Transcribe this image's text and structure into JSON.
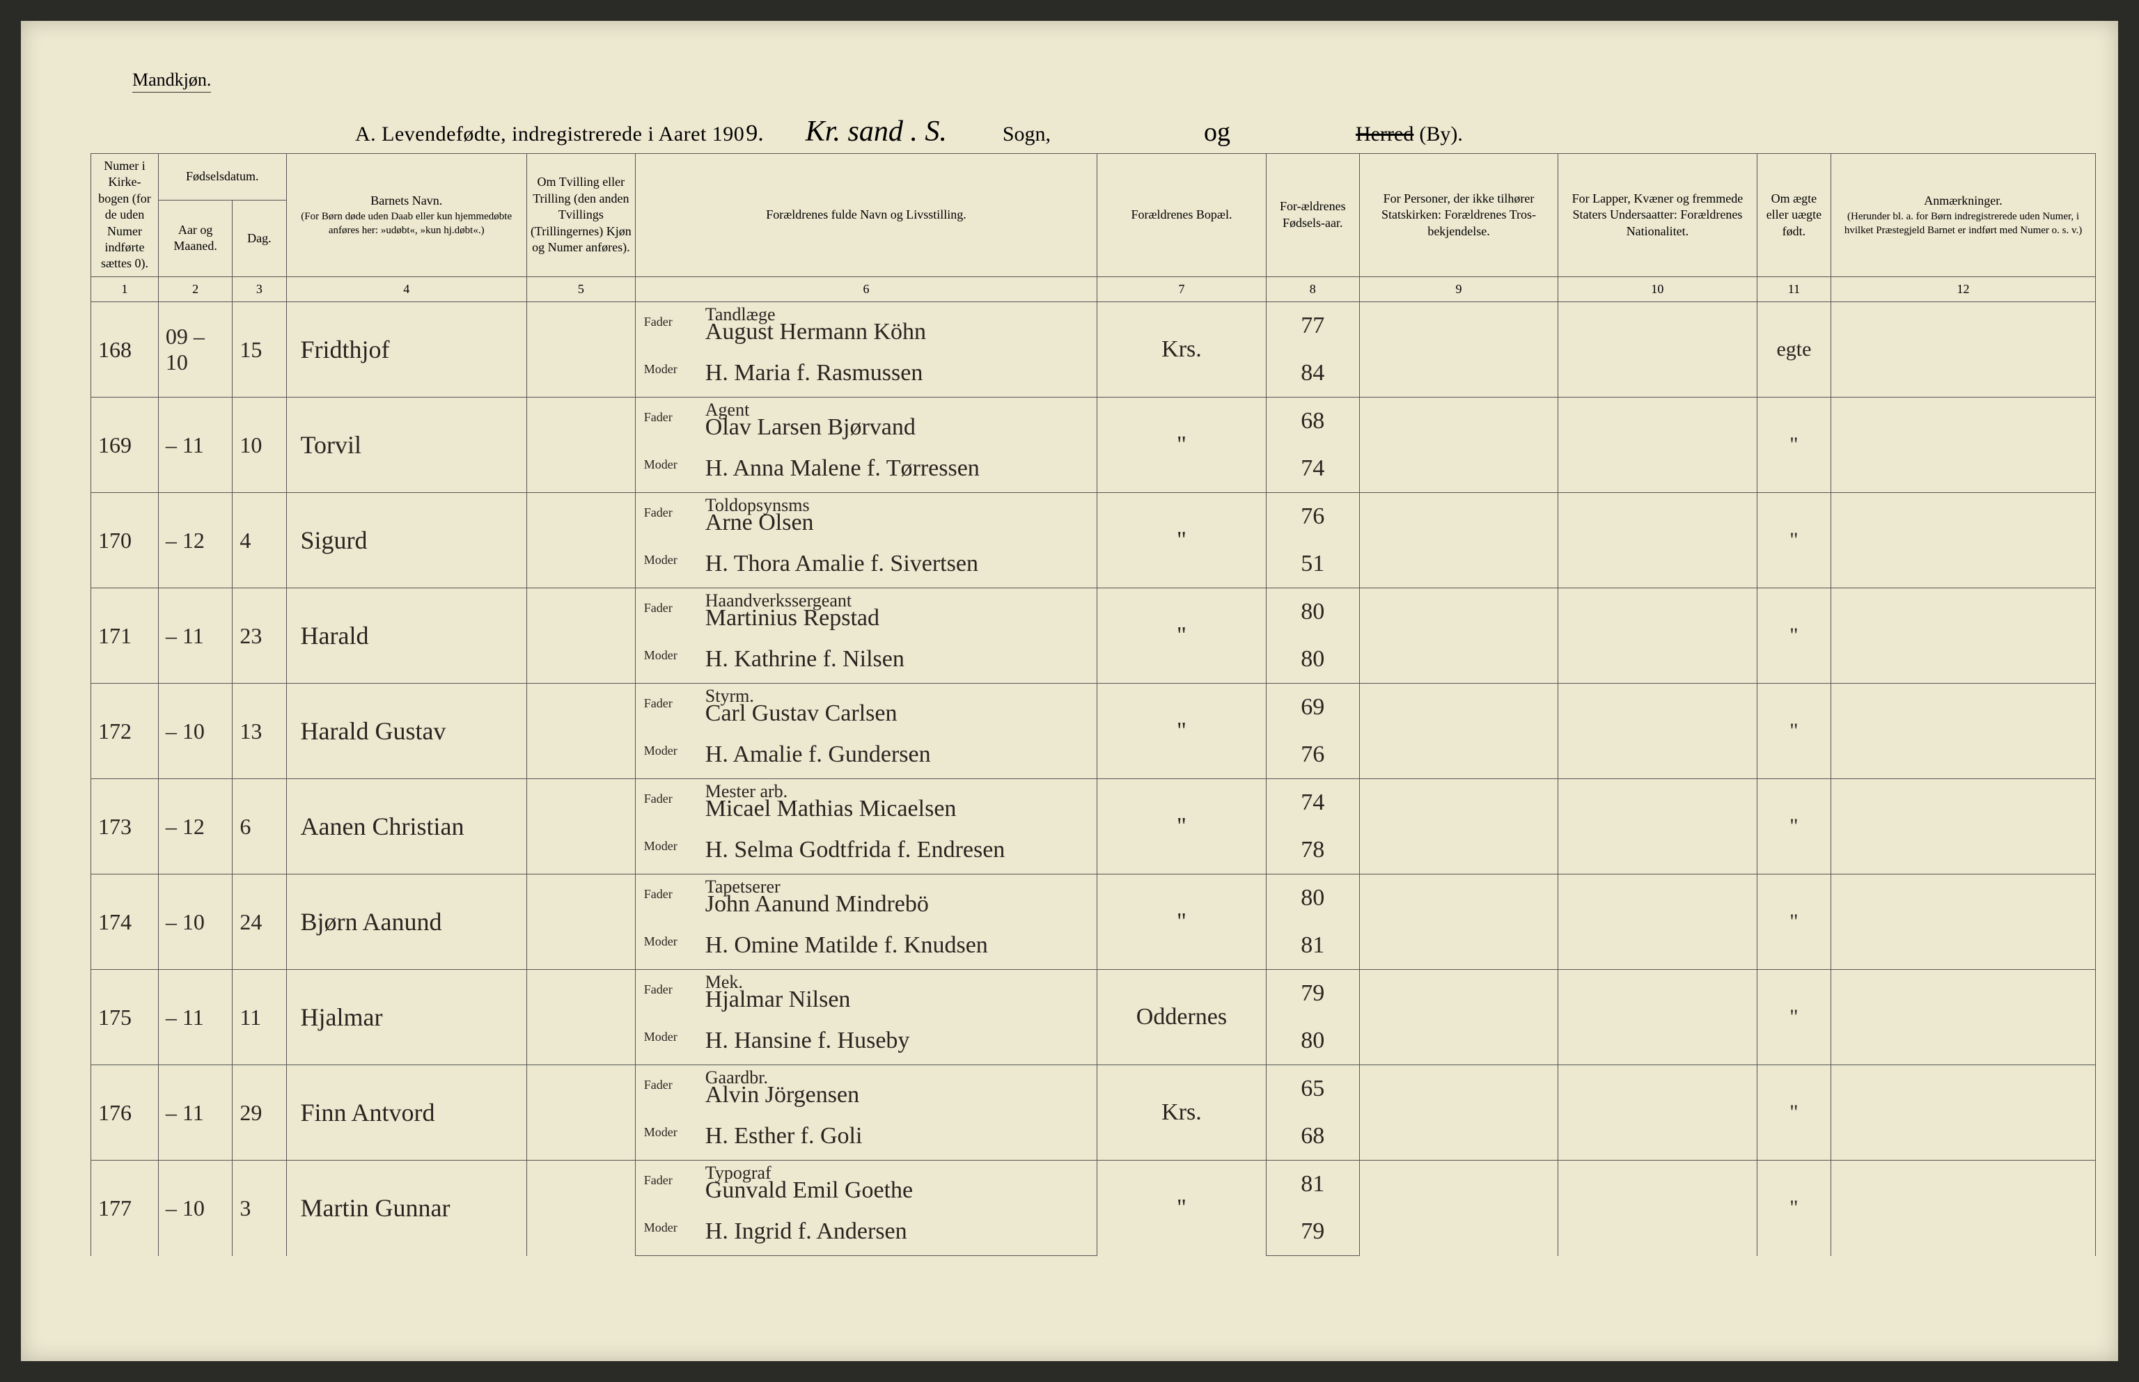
{
  "page": {
    "gender_label": "Mandkjøn.",
    "title_prefix": "A.  Levendefødte, indregistrerede i Aaret 190",
    "year_suffix": "9.",
    "parish_script": "Kr. sand . S.",
    "sogn_label": "Sogn,",
    "og_script": "og",
    "herred_label": "Herred",
    "by_label": "(By)."
  },
  "headers": {
    "c1": "Numer i Kirke-bogen (for de uden Numer indførte sættes 0).",
    "c_fods": "Fødselsdatum.",
    "c2": "Aar og Maaned.",
    "c3": "Dag.",
    "c4_top": "Barnets Navn.",
    "c4_sub": "(For Børn døde uden Daab eller kun hjemmedøbte anføres her: »udøbt«, »kun hj.døbt«.)",
    "c5": "Om Tvilling eller Trilling (den anden Tvillings (Trillingernes) Kjøn og Numer anføres).",
    "c6": "Forældrenes fulde Navn og Livsstilling.",
    "c7": "Forældrenes Bopæl.",
    "c8": "For-ældrenes Fødsels-aar.",
    "c9": "For Personer, der ikke tilhører Statskirken: Forældrenes Tros-bekjendelse.",
    "c10": "For Lapper, Kvæner og fremmede Staters Undersaatter: Forældrenes Nationalitet.",
    "c11": "Om ægte eller uægte født.",
    "c12_top": "Anmærkninger.",
    "c12_sub": "(Herunder bl. a. for Børn indregistrerede uden Numer, i hvilket Præstegjeld Barnet er indført med Numer o. s. v.)",
    "fader": "Fader",
    "moder": "Moder"
  },
  "colnums": [
    "1",
    "2",
    "3",
    "4",
    "5",
    "6",
    "7",
    "8",
    "9",
    "10",
    "11",
    "12"
  ],
  "rows": [
    {
      "num": "168",
      "aar": "09 – 10",
      "dag": "15",
      "navn": "Fridthjof",
      "fader_occ": "Tandlæge",
      "fader": "August Hermann Köhn",
      "bopael": "Krs.",
      "f_aar": "77",
      "moder": "H. Maria f. Rasmussen",
      "m_aar": "84",
      "aegte": "egte"
    },
    {
      "num": "169",
      "aar": "– 11",
      "dag": "10",
      "navn": "Torvil",
      "fader_occ": "Agent",
      "fader": "Olav Larsen Bjørvand",
      "bopael": "\"",
      "f_aar": "68",
      "moder": "H. Anna Malene f. Tørressen",
      "m_aar": "74",
      "aegte": "\""
    },
    {
      "num": "170",
      "aar": "– 12",
      "dag": "4",
      "navn": "Sigurd",
      "fader_occ": "Toldopsynsms",
      "fader": "Arne Olsen",
      "bopael": "\"",
      "f_aar": "76",
      "moder": "H. Thora Amalie f. Sivertsen",
      "m_aar": "51",
      "aegte": "\""
    },
    {
      "num": "171",
      "aar": "– 11",
      "dag": "23",
      "navn": "Harald",
      "fader_occ": "Haandverkssergeant",
      "fader": "Martinius Repstad",
      "bopael": "\"",
      "f_aar": "80",
      "moder": "H. Kathrine f. Nilsen",
      "m_aar": "80",
      "aegte": "\""
    },
    {
      "num": "172",
      "aar": "– 10",
      "dag": "13",
      "navn": "Harald Gustav",
      "fader_occ": "Styrm.",
      "fader": "Carl Gustav Carlsen",
      "bopael": "\"",
      "f_aar": "69",
      "moder": "H. Amalie f. Gundersen",
      "m_aar": "76",
      "aegte": "\""
    },
    {
      "num": "173",
      "aar": "– 12",
      "dag": "6",
      "navn": "Aanen Christian",
      "fader_occ": "Mester arb.",
      "fader": "Micael Mathias Micaelsen",
      "bopael": "\"",
      "f_aar": "74",
      "moder": "H. Selma Godtfrida f. Endresen",
      "m_aar": "78",
      "aegte": "\""
    },
    {
      "num": "174",
      "aar": "– 10",
      "dag": "24",
      "navn": "Bjørn Aanund",
      "fader_occ": "Tapetserer",
      "fader": "John Aanund Mindrebö",
      "bopael": "\"",
      "f_aar": "80",
      "moder": "H. Omine Matilde f. Knudsen",
      "m_aar": "81",
      "aegte": "\""
    },
    {
      "num": "175",
      "aar": "– 11",
      "dag": "11",
      "navn": "Hjalmar",
      "fader_occ": "Mek.",
      "fader": "Hjalmar Nilsen",
      "bopael": "Oddernes",
      "f_aar": "79",
      "moder": "H. Hansine f. Huseby",
      "m_aar": "80",
      "aegte": "\""
    },
    {
      "num": "176",
      "aar": "– 11",
      "dag": "29",
      "navn": "Finn Antvord",
      "fader_occ": "Gaardbr.",
      "fader": "Alvin Jörgensen",
      "bopael": "Krs.",
      "f_aar": "65",
      "moder": "H. Esther f. Goli",
      "m_aar": "68",
      "aegte": "\""
    },
    {
      "num": "177",
      "aar": "– 10",
      "dag": "3",
      "navn": "Martin Gunnar",
      "fader_occ": "Typograf",
      "fader": "Gunvald Emil Goethe",
      "bopael": "\"",
      "f_aar": "81",
      "moder": "H. Ingrid f. Andersen",
      "m_aar": "79",
      "aegte": "\""
    }
  ]
}
